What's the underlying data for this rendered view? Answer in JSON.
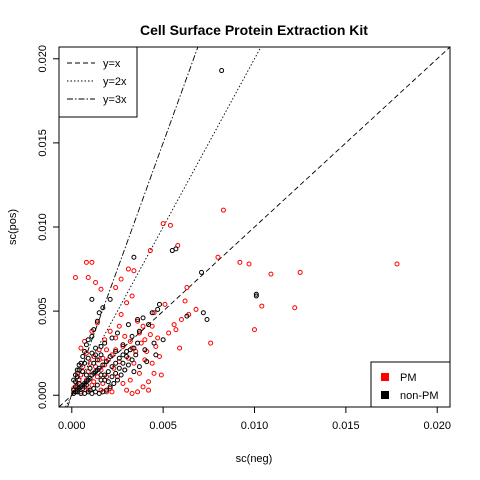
{
  "chart_data": {
    "type": "scatter",
    "title": "Cell Surface Protein Extraction Kit",
    "xlabel": "sc(neg)",
    "ylabel": "sc(pos)",
    "xlim": [
      -0.0007,
      0.0207
    ],
    "ylim": [
      -0.0007,
      0.0207
    ],
    "x_ticks": [
      "0.000",
      "0.005",
      "0.010",
      "0.015",
      "0.020"
    ],
    "y_ticks": [
      "0.000",
      "0.005",
      "0.010",
      "0.015",
      "0.020"
    ],
    "grid": false,
    "reference_lines": [
      {
        "label": "y=x",
        "slope": 1,
        "style": "dashed"
      },
      {
        "label": "y=2x",
        "slope": 2,
        "style": "dotted"
      },
      {
        "label": "y=3x",
        "slope": 3,
        "style": "dashdot"
      }
    ],
    "reference_legend_position": "top-left",
    "group_legend_position": "bottom-right",
    "series": [
      {
        "name": "PM",
        "color": "#ff0000",
        "points": [
          [
            0.0002,
            0.007
          ],
          [
            0.0008,
            0.0079
          ],
          [
            0.0011,
            0.0079
          ],
          [
            0.0009,
            0.007
          ],
          [
            0.0013,
            0.0067
          ],
          [
            0.0016,
            0.0063
          ],
          [
            0.0024,
            0.0064
          ],
          [
            0.0027,
            0.0069
          ],
          [
            0.0031,
            0.0075
          ],
          [
            0.0034,
            0.0074
          ],
          [
            0.0043,
            0.0086
          ],
          [
            0.005,
            0.0102
          ],
          [
            0.0054,
            0.0101
          ],
          [
            0.0058,
            0.0089
          ],
          [
            0.0062,
            0.0056
          ],
          [
            0.0063,
            0.0064
          ],
          [
            0.008,
            0.0082
          ],
          [
            0.0083,
            0.011
          ],
          [
            0.0092,
            0.0079
          ],
          [
            0.0097,
            0.0078
          ],
          [
            0.0104,
            0.0053
          ],
          [
            0.0109,
            0.0072
          ],
          [
            0.0122,
            0.0052
          ],
          [
            0.0125,
            0.0073
          ],
          [
            0.0178,
            0.0078
          ],
          [
            0.0064,
            0.0048
          ],
          [
            0.0068,
            0.0051
          ],
          [
            0.0076,
            0.0031
          ],
          [
            0.01,
            0.0039
          ],
          [
            0.0059,
            0.0028
          ],
          [
            0.0051,
            0.0054
          ],
          [
            0.0057,
            0.0039
          ],
          [
            0.0033,
            0.0059
          ],
          [
            0.003,
            0.0055
          ],
          [
            0.0045,
            0.0049
          ],
          [
            0.0039,
            0.0041
          ],
          [
            0.0043,
            0.0036
          ],
          [
            0.0032,
            0.0032
          ],
          [
            0.0028,
            0.0029
          ],
          [
            0.0024,
            0.0034
          ],
          [
            0.0022,
            0.0024
          ],
          [
            0.002,
            0.0021
          ],
          [
            0.0018,
            0.0018
          ],
          [
            0.0016,
            0.0015
          ],
          [
            0.0015,
            0.0027
          ],
          [
            0.0012,
            0.0023
          ],
          [
            0.001,
            0.0019
          ],
          [
            0.0008,
            0.0025
          ],
          [
            0.0006,
            0.0017
          ],
          [
            0.0005,
            0.0012
          ],
          [
            0.0004,
            0.0009
          ],
          [
            0.0003,
            0.0006
          ],
          [
            0.0003,
            0.0013
          ],
          [
            0.0007,
            0.0005
          ],
          [
            0.0009,
            0.0003
          ],
          [
            0.0012,
            0.0008
          ],
          [
            0.0014,
            0.0011
          ],
          [
            0.0017,
            0.0007
          ],
          [
            0.0019,
            0.0011
          ],
          [
            0.0021,
            0.0004
          ],
          [
            0.0023,
            0.0016
          ],
          [
            0.0025,
            0.0011
          ],
          [
            0.0026,
            0.002
          ],
          [
            0.0028,
            0.0007
          ],
          [
            0.0029,
            0.0015
          ],
          [
            0.0031,
            0.0022
          ],
          [
            0.0032,
            0.0009
          ],
          [
            0.0034,
            0.0019
          ],
          [
            0.0035,
            0.0026
          ],
          [
            0.0037,
            0.0013
          ],
          [
            0.0038,
            0.0031
          ],
          [
            0.0039,
            0.0005
          ],
          [
            0.004,
            0.0021
          ],
          [
            0.0041,
            0.0026
          ],
          [
            0.0042,
            0.0003
          ],
          [
            0.0044,
            0.0019
          ],
          [
            0.0046,
            0.0029
          ],
          [
            0.0048,
            0.0023
          ],
          [
            0.0049,
            0.0012
          ],
          [
            0.0047,
            0.0034
          ],
          [
            0.0036,
            0.0044
          ],
          [
            0.0027,
            0.0048
          ],
          [
            0.0014,
            0.0043
          ],
          [
            0.0011,
            0.0038
          ],
          [
            0.0018,
            0.0033
          ],
          [
            0.0021,
            0.0038
          ],
          [
            0.0007,
            0.0032
          ],
          [
            0.0005,
            0.0028
          ],
          [
            0.0009,
            0.0014
          ],
          [
            0.0013,
            0.0017
          ],
          [
            0.0016,
            0.0003
          ],
          [
            0.0019,
            0.0002
          ],
          [
            0.0022,
            0.0002
          ],
          [
            0.003,
            0.0003
          ],
          [
            0.0033,
            0.0001
          ],
          [
            0.0036,
            0.0002
          ],
          [
            0.0042,
            0.0008
          ],
          [
            0.0045,
            0.0013
          ],
          [
            0.0053,
            0.0037
          ],
          [
            0.0056,
            0.0042
          ],
          [
            0.006,
            0.0045
          ],
          [
            0.0037,
            0.0037
          ],
          [
            0.0029,
            0.0035
          ],
          [
            0.0008,
            0.0009
          ],
          [
            0.0011,
            0.0006
          ],
          [
            0.0002,
            0.0002
          ],
          [
            0.0001,
            0.0004
          ],
          [
            0.0005,
            0.0002
          ],
          [
            0.0015,
            0.0021
          ],
          [
            0.0024,
            0.0027
          ],
          [
            0.0033,
            0.0028
          ],
          [
            0.004,
            0.0033
          ],
          [
            0.0044,
            0.0041
          ],
          [
            0.0026,
            0.0041
          ],
          [
            0.0019,
            0.0027
          ],
          [
            0.0017,
            0.0022
          ]
        ]
      },
      {
        "name": "non-PM",
        "color": "#000000",
        "points": [
          [
            0.0082,
            0.0193
          ],
          [
            0.0034,
            0.0082
          ],
          [
            0.0055,
            0.0086
          ],
          [
            0.0057,
            0.0087
          ],
          [
            0.0048,
            0.0054
          ],
          [
            0.0071,
            0.0073
          ],
          [
            0.0072,
            0.0049
          ],
          [
            0.0074,
            0.0045
          ],
          [
            0.0101,
            0.006
          ],
          [
            0.0101,
            0.0059
          ],
          [
            0.0063,
            0.0047
          ],
          [
            0.0047,
            0.0051
          ],
          [
            0.0042,
            0.0042
          ],
          [
            0.0037,
            0.0038
          ],
          [
            0.0033,
            0.0035
          ],
          [
            0.0028,
            0.003
          ],
          [
            0.0024,
            0.0026
          ],
          [
            0.0021,
            0.0023
          ],
          [
            0.0019,
            0.002
          ],
          [
            0.0017,
            0.0018
          ],
          [
            0.0015,
            0.0016
          ],
          [
            0.0013,
            0.0014
          ],
          [
            0.0011,
            0.0012
          ],
          [
            0.001,
            0.001
          ],
          [
            0.0009,
            0.0009
          ],
          [
            0.0008,
            0.0008
          ],
          [
            0.0007,
            0.0007
          ],
          [
            0.0006,
            0.0006
          ],
          [
            0.0005,
            0.0005
          ],
          [
            0.0004,
            0.0004
          ],
          [
            0.0003,
            0.0003
          ],
          [
            0.0002,
            0.0002
          ],
          [
            0.0001,
            0.0001
          ],
          [
            0.0002,
            0.0008
          ],
          [
            0.0003,
            0.0011
          ],
          [
            0.0004,
            0.0015
          ],
          [
            0.0005,
            0.0019
          ],
          [
            0.0006,
            0.0023
          ],
          [
            0.0007,
            0.0026
          ],
          [
            0.0008,
            0.003
          ],
          [
            0.0009,
            0.0033
          ],
          [
            0.0011,
            0.0035
          ],
          [
            0.0012,
            0.0039
          ],
          [
            0.0014,
            0.0044
          ],
          [
            0.0015,
            0.0049
          ],
          [
            0.0011,
            0.0057
          ],
          [
            0.0017,
            0.0052
          ],
          [
            0.0021,
            0.0057
          ],
          [
            0.0013,
            0.0024
          ],
          [
            0.0016,
            0.0029
          ],
          [
            0.0018,
            0.0031
          ],
          [
            0.0022,
            0.0034
          ],
          [
            0.0025,
            0.0037
          ],
          [
            0.0031,
            0.0042
          ],
          [
            0.0036,
            0.0045
          ],
          [
            0.0039,
            0.0046
          ],
          [
            0.0044,
            0.0049
          ],
          [
            0.0012,
            0.0004
          ],
          [
            0.0014,
            0.0006
          ],
          [
            0.0016,
            0.0009
          ],
          [
            0.0018,
            0.0012
          ],
          [
            0.002,
            0.0014
          ],
          [
            0.0022,
            0.0017
          ],
          [
            0.0024,
            0.0019
          ],
          [
            0.0026,
            0.0022
          ],
          [
            0.0028,
            0.0024
          ],
          [
            0.003,
            0.0026
          ],
          [
            0.0032,
            0.0027
          ],
          [
            0.0034,
            0.0028
          ],
          [
            0.0035,
            0.0024
          ],
          [
            0.0033,
            0.0021
          ],
          [
            0.0031,
            0.0018
          ],
          [
            0.0029,
            0.0015
          ],
          [
            0.0027,
            0.0012
          ],
          [
            0.0025,
            0.0009
          ],
          [
            0.0023,
            0.0007
          ],
          [
            0.0021,
            0.0005
          ],
          [
            0.0019,
            0.0003
          ],
          [
            0.0017,
            0.0002
          ],
          [
            0.0015,
            0.0001
          ],
          [
            0.0013,
            0.0002
          ],
          [
            0.0011,
            0.0001
          ],
          [
            0.0009,
            0.0002
          ],
          [
            0.0007,
            0.0001
          ],
          [
            0.0005,
            0.0001
          ],
          [
            0.0003,
            0.0002
          ],
          [
            0.0001,
            0.0003
          ],
          [
            0.0002,
            0.0005
          ],
          [
            0.0004,
            0.0007
          ],
          [
            0.0006,
            0.0004
          ],
          [
            0.0008,
            0.0006
          ],
          [
            0.001,
            0.0003
          ],
          [
            0.0012,
            0.0013
          ],
          [
            0.0014,
            0.0015
          ],
          [
            0.0016,
            0.0012
          ],
          [
            0.0018,
            0.0009
          ],
          [
            0.002,
            0.0008
          ],
          [
            0.0022,
            0.0011
          ],
          [
            0.0024,
            0.0013
          ],
          [
            0.0026,
            0.0016
          ],
          [
            0.0028,
            0.0019
          ],
          [
            0.003,
            0.0023
          ],
          [
            0.0036,
            0.0031
          ],
          [
            0.004,
            0.0027
          ],
          [
            0.0045,
            0.0031
          ],
          [
            0.005,
            0.0033
          ],
          [
            0.0007,
            0.0019
          ],
          [
            0.0009,
            0.0022
          ],
          [
            0.0011,
            0.0025
          ],
          [
            0.0013,
            0.0028
          ],
          [
            0.0001,
            0.0009
          ],
          [
            0.0002,
            0.0012
          ],
          [
            0.0003,
            0.0015
          ],
          [
            0.0004,
            0.0018
          ],
          [
            0.0006,
            0.0014
          ],
          [
            0.0008,
            0.0012
          ],
          [
            0.001,
            0.0016
          ],
          [
            0.0012,
            0.0019
          ],
          [
            0.0014,
            0.0021
          ],
          [
            0.0016,
            0.0024
          ],
          [
            0.0034,
            0.0014
          ],
          [
            0.0037,
            0.0017
          ],
          [
            0.0041,
            0.002
          ],
          [
            0.0046,
            0.0024
          ]
        ]
      }
    ]
  }
}
